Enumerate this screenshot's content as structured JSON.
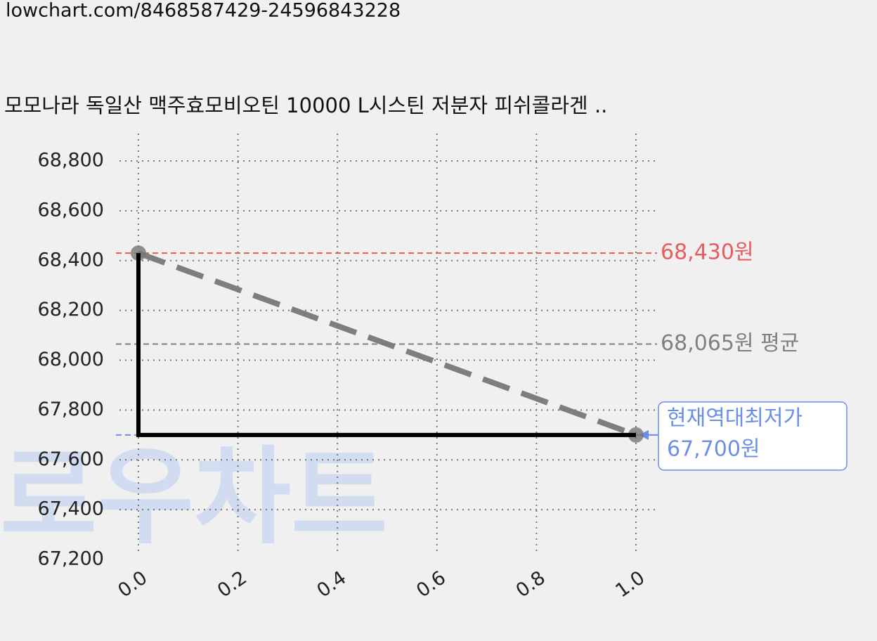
{
  "url": "lowchart.com/8468587429-24596843228",
  "chart_data": {
    "type": "line",
    "title": "모모나라 독일산 맥주효모비오틴 10000 L시스틴 저분자 피쉬콜라겐 ..",
    "watermark": "로우차트",
    "xlim": [
      0,
      1
    ],
    "xticks": [
      {
        "value": 0,
        "label": "0.0"
      },
      0.2,
      0.4,
      0.6,
      0.8,
      {
        "value": 1,
        "label": "1.0"
      }
    ],
    "ylim": [
      67200,
      68800
    ],
    "yticks": [
      {
        "value": 67200,
        "label": "67,200"
      },
      {
        "value": 67400,
        "label": "67,400"
      },
      {
        "value": 67600,
        "label": "67,600"
      },
      {
        "value": 67800,
        "label": "67,800"
      },
      {
        "value": 68000,
        "label": "68,000"
      },
      {
        "value": 68200,
        "label": "68,200"
      },
      {
        "value": 68400,
        "label": "68,400"
      },
      {
        "value": 68600,
        "label": "68,600"
      },
      {
        "value": 68800,
        "label": "68,800"
      }
    ],
    "grid": true,
    "series": [
      {
        "x": [
          0,
          0,
          1
        ],
        "values": [
          68430,
          67700,
          67700
        ],
        "color": "#000000"
      },
      {
        "x": [
          0,
          1
        ],
        "values": [
          68430,
          67700
        ],
        "color": "#777777",
        "dashed": true,
        "markers": true
      }
    ],
    "reference_lines": [
      {
        "value": 68430,
        "labels": [
          "68,430원"
        ],
        "color": "#e85c5c"
      },
      {
        "value": 68065,
        "labels": [
          "68,065원 평균"
        ],
        "color": "#808080"
      },
      {
        "value": 67700,
        "labels": [
          "현재역대최저가",
          "67,700원"
        ],
        "color": "#6b8ee8",
        "boxed": true
      }
    ]
  }
}
